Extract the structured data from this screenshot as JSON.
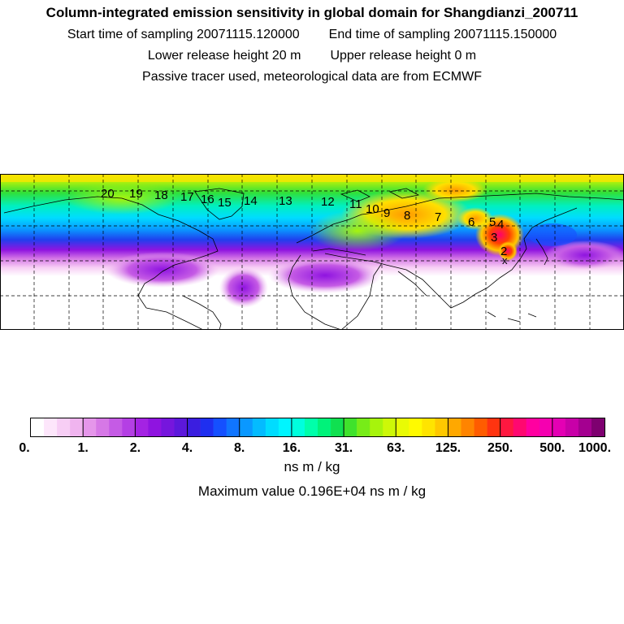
{
  "header": {
    "title": "Column-integrated emission sensitivity in global domain for Shangdianzi_200711",
    "start_label": "Start time of sampling 20071115.120000",
    "end_label": "End time of sampling 20071115.150000",
    "lower_label": "Lower release height   20 m",
    "upper_label": "Upper release height    0 m",
    "info": "Passive tracer used, meteorological data are from ECMWF"
  },
  "map": {
    "labels": [
      "20",
      "19",
      "18",
      "17",
      "16",
      "15",
      "14",
      "13",
      "12",
      "11",
      "10",
      "9",
      "8",
      "7",
      "6",
      "5",
      "4",
      "3",
      "2"
    ],
    "station_marker": "x"
  },
  "colorbar": {
    "ticks": [
      "0.",
      "1.",
      "2.",
      "4.",
      "8.",
      "16.",
      "31.",
      "63.",
      "125.",
      "250.",
      "500.",
      "1000."
    ],
    "colors": [
      "#ffffff",
      "#fde6fb",
      "#f7cef5",
      "#f0b4ef",
      "#e596ea",
      "#d678e6",
      "#c55be5",
      "#b43fe4",
      "#a423e3",
      "#8f14e0",
      "#7616dd",
      "#5c18db",
      "#3b1ee0",
      "#1f2ff0",
      "#1550ff",
      "#1075ff",
      "#0a98ff",
      "#04bbff",
      "#00dcff",
      "#00f5ff",
      "#00ffdd",
      "#00ffaa",
      "#00f27a",
      "#10e050",
      "#3fe22c",
      "#77ec18",
      "#a7f40c",
      "#cdf808",
      "#e9fb04",
      "#fffa00",
      "#ffe400",
      "#ffc800",
      "#ffa800",
      "#ff8400",
      "#ff5c00",
      "#ff3410",
      "#ff1840",
      "#ff0870",
      "#ff00a0",
      "#f500b0",
      "#e400b4",
      "#c800a8",
      "#a40090",
      "#7e0070",
      "#540050"
    ],
    "unit": "ns m / kg",
    "max_value": "Maximum value  0.196E+04 ns m / kg"
  }
}
